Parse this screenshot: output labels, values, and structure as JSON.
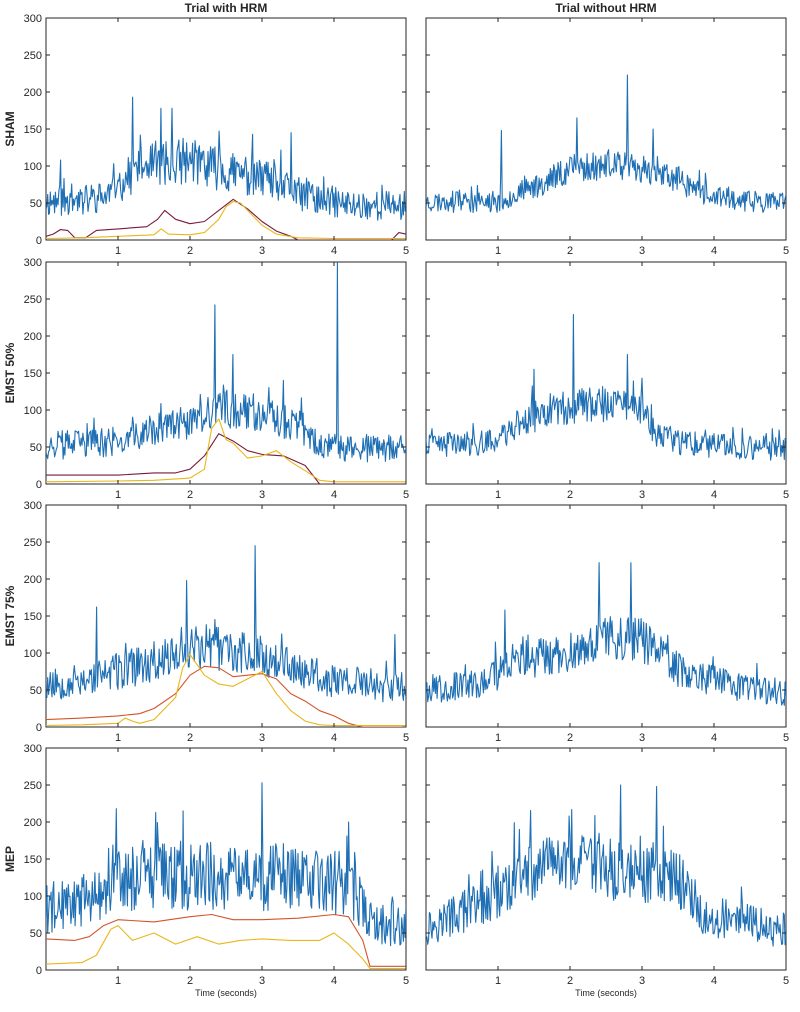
{
  "column_titles": [
    "Trial with HRM",
    "Trial without HRM"
  ],
  "row_labels": [
    "SHAM",
    "EMST 50%",
    "EMST 75%",
    "MEP"
  ],
  "colors": {
    "emg": "#1f6fb4",
    "dark_red": "#7a1a3a",
    "orange_red": "#d4542a",
    "yellow": "#e8b71a"
  },
  "chart_data": [
    {
      "type": "line",
      "row": "SHAM",
      "column": "Trial with HRM",
      "ylabel": "SHAM",
      "xlabel": "",
      "xlim": [
        0,
        5
      ],
      "ylim": [
        0,
        300
      ],
      "xticks": [
        1,
        2,
        3,
        4,
        5
      ],
      "yticks": [
        0,
        50,
        100,
        150,
        200,
        250,
        300
      ],
      "series": [
        {
          "name": "EMG (blue)",
          "color": "#1f6fb4",
          "envelope": {
            "x": [
              0,
              0.8,
              1.3,
              2.0,
              2.5,
              3.0,
              3.5,
              4.2,
              5.0
            ],
            "y": [
              50,
              55,
              95,
              105,
              90,
              80,
              60,
              45,
              45
            ]
          },
          "noise": 22,
          "seed": 11,
          "spikes": [
            [
              0.2,
              108
            ],
            [
              1.2,
              193
            ],
            [
              1.6,
              178
            ],
            [
              1.75,
              178
            ],
            [
              2.4,
              147
            ],
            [
              3.4,
              145
            ]
          ]
        },
        {
          "name": "Envelope (dark red)",
          "color": "#7a1a3a",
          "x": [
            0,
            0.1,
            0.2,
            0.3,
            0.4,
            0.55,
            0.7,
            1.0,
            1.4,
            1.55,
            1.65,
            1.8,
            2.0,
            2.2,
            2.4,
            2.6,
            2.8,
            3.0,
            3.2,
            3.4,
            3.5,
            4.0,
            4.5,
            4.8,
            4.9,
            5.0
          ],
          "y": [
            5,
            8,
            14,
            13,
            3,
            3,
            13,
            15,
            18,
            28,
            40,
            28,
            22,
            25,
            40,
            55,
            42,
            25,
            12,
            5,
            0,
            0,
            0,
            0,
            10,
            8
          ]
        },
        {
          "name": "Envelope (yellow)",
          "color": "#e8b71a",
          "x": [
            0,
            0.5,
            1.0,
            1.5,
            1.6,
            1.7,
            2.0,
            2.2,
            2.4,
            2.5,
            2.6,
            2.7,
            2.8,
            2.9,
            3.0,
            3.2,
            3.5,
            4.0,
            4.5,
            5.0
          ],
          "y": [
            2,
            3,
            5,
            7,
            15,
            8,
            7,
            10,
            28,
            45,
            52,
            50,
            40,
            30,
            20,
            8,
            3,
            2,
            2,
            2
          ]
        }
      ]
    },
    {
      "type": "line",
      "row": "SHAM",
      "column": "Trial without HRM",
      "xlabel": "",
      "xlim": [
        0,
        5
      ],
      "ylim": [
        0,
        300
      ],
      "xticks": [
        1,
        2,
        3,
        4,
        5
      ],
      "yticks": [],
      "series": [
        {
          "name": "EMG (blue)",
          "color": "#1f6fb4",
          "envelope": {
            "x": [
              0,
              1.0,
              1.5,
              2.0,
              2.5,
              3.0,
              3.5,
              4.0,
              5.0
            ],
            "y": [
              50,
              50,
              70,
              95,
              100,
              95,
              80,
              55,
              48
            ]
          },
          "noise": 15,
          "seed": 23,
          "spikes": [
            [
              1.05,
              148
            ],
            [
              2.1,
              165
            ],
            [
              2.8,
              223
            ],
            [
              3.15,
              150
            ]
          ]
        }
      ]
    },
    {
      "type": "line",
      "row": "EMST 50%",
      "column": "Trial with HRM",
      "ylabel": "EMST 50%",
      "xlabel": "",
      "xlim": [
        0,
        5
      ],
      "ylim": [
        0,
        300
      ],
      "xticks": [
        1,
        2,
        3,
        4,
        5
      ],
      "yticks": [
        0,
        50,
        100,
        150,
        200,
        250,
        300
      ],
      "series": [
        {
          "name": "EMG (blue)",
          "color": "#1f6fb4",
          "envelope": {
            "x": [
              0,
              1.0,
              1.5,
              2.0,
              2.5,
              3.0,
              3.5,
              3.8,
              4.0,
              5.0
            ],
            "y": [
              50,
              55,
              70,
              80,
              100,
              95,
              75,
              50,
              48,
              45
            ]
          },
          "noise": 20,
          "seed": 37,
          "spikes": [
            [
              2.35,
              242
            ],
            [
              2.6,
              175
            ],
            [
              3.3,
              140
            ],
            [
              4.05,
              300
            ]
          ]
        },
        {
          "name": "Envelope (dark red)",
          "color": "#7a1a3a",
          "x": [
            0,
            0.5,
            1.0,
            1.5,
            1.8,
            2.0,
            2.2,
            2.4,
            2.6,
            2.8,
            3.0,
            3.3,
            3.6,
            3.8,
            4.0,
            5.0
          ],
          "y": [
            12,
            12,
            12,
            15,
            15,
            20,
            38,
            68,
            58,
            45,
            40,
            38,
            25,
            0,
            0,
            0
          ]
        },
        {
          "name": "Envelope (yellow)",
          "color": "#e8b71a",
          "x": [
            0,
            1.0,
            1.5,
            2.0,
            2.2,
            2.3,
            2.4,
            2.5,
            2.6,
            2.8,
            3.0,
            3.2,
            3.4,
            3.6,
            3.8,
            4.0,
            5.0
          ],
          "y": [
            3,
            4,
            5,
            8,
            20,
            75,
            88,
            60,
            55,
            35,
            38,
            45,
            30,
            18,
            5,
            3,
            3
          ]
        }
      ]
    },
    {
      "type": "line",
      "row": "EMST 50%",
      "column": "Trial without HRM",
      "xlabel": "",
      "xlim": [
        0,
        5
      ],
      "ylim": [
        0,
        300
      ],
      "xticks": [
        1,
        2,
        3,
        4,
        5
      ],
      "yticks": [],
      "series": [
        {
          "name": "EMG (blue)",
          "color": "#1f6fb4",
          "envelope": {
            "x": [
              0,
              1.0,
              1.2,
              1.8,
              2.5,
              3.0,
              3.2,
              3.5,
              4.0,
              5.0
            ],
            "y": [
              50,
              55,
              75,
              100,
              105,
              100,
              65,
              55,
              50,
              45
            ]
          },
          "noise": 17,
          "seed": 41,
          "spikes": [
            [
              2.05,
              229
            ],
            [
              2.8,
              175
            ],
            [
              1.5,
              155
            ]
          ]
        }
      ]
    },
    {
      "type": "line",
      "row": "EMST 75%",
      "column": "Trial with HRM",
      "ylabel": "EMST 75%",
      "xlabel": "",
      "xlim": [
        0,
        5
      ],
      "ylim": [
        0,
        300
      ],
      "xticks": [
        1,
        2,
        3,
        4,
        5
      ],
      "yticks": [
        0,
        50,
        100,
        150,
        200,
        250,
        300
      ],
      "series": [
        {
          "name": "EMG (blue)",
          "color": "#1f6fb4",
          "envelope": {
            "x": [
              0,
              0.7,
              1.5,
              2.0,
              2.5,
              3.0,
              3.5,
              4.0,
              5.0
            ],
            "y": [
              55,
              65,
              85,
              110,
              100,
              95,
              75,
              60,
              50
            ]
          },
          "noise": 22,
          "seed": 53,
          "spikes": [
            [
              0.7,
              162
            ],
            [
              1.95,
              198
            ],
            [
              2.9,
              245
            ],
            [
              4.85,
              125
            ]
          ]
        },
        {
          "name": "Envelope (orange-red)",
          "color": "#d4542a",
          "x": [
            0,
            0.5,
            1.0,
            1.3,
            1.5,
            1.8,
            2.0,
            2.2,
            2.4,
            2.6,
            2.8,
            3.0,
            3.2,
            3.4,
            3.6,
            3.8,
            4.0,
            4.2,
            4.4,
            5.0
          ],
          "y": [
            10,
            12,
            15,
            18,
            25,
            45,
            70,
            82,
            80,
            68,
            70,
            72,
            65,
            45,
            35,
            22,
            15,
            5,
            0,
            0
          ]
        },
        {
          "name": "Envelope (yellow)",
          "color": "#e8b71a",
          "x": [
            0,
            0.5,
            1.0,
            1.1,
            1.2,
            1.3,
            1.5,
            1.8,
            1.9,
            2.0,
            2.2,
            2.4,
            2.6,
            2.8,
            3.0,
            3.2,
            3.4,
            3.6,
            3.8,
            4.0,
            5.0
          ],
          "y": [
            2,
            3,
            5,
            12,
            8,
            5,
            10,
            40,
            80,
            98,
            70,
            58,
            55,
            65,
            75,
            45,
            22,
            8,
            3,
            2,
            2
          ]
        }
      ]
    },
    {
      "type": "line",
      "row": "EMST 75%",
      "column": "Trial without HRM",
      "xlabel": "",
      "xlim": [
        0,
        5
      ],
      "ylim": [
        0,
        300
      ],
      "xticks": [
        1,
        2,
        3,
        4,
        5
      ],
      "yticks": [],
      "series": [
        {
          "name": "EMG (blue)",
          "color": "#1f6fb4",
          "envelope": {
            "x": [
              0,
              0.8,
              1.2,
              2.0,
              2.5,
              3.0,
              3.5,
              4.0,
              4.5,
              5.0
            ],
            "y": [
              50,
              55,
              85,
              100,
              120,
              115,
              75,
              60,
              48,
              45
            ]
          },
          "noise": 20,
          "seed": 67,
          "spikes": [
            [
              2.4,
              222
            ],
            [
              2.85,
              222
            ],
            [
              1.1,
              158
            ]
          ]
        }
      ]
    },
    {
      "type": "line",
      "row": "MEP",
      "column": "Trial with HRM",
      "ylabel": "MEP",
      "xlabel": "Time (seconds)",
      "xlim": [
        0,
        5
      ],
      "ylim": [
        0,
        300
      ],
      "xticks": [
        1,
        2,
        3,
        4,
        5
      ],
      "yticks": [
        0,
        50,
        100,
        150,
        200,
        250,
        300
      ],
      "series": [
        {
          "name": "EMG (blue)",
          "color": "#1f6fb4",
          "envelope": {
            "x": [
              0,
              0.5,
              0.9,
              1.5,
              2.5,
              3.5,
              4.2,
              4.5,
              5.0
            ],
            "y": [
              80,
              85,
              120,
              125,
              120,
              120,
              110,
              65,
              55
            ]
          },
          "noise": 30,
          "seed": 79,
          "spikes": [
            [
              0.98,
              218
            ],
            [
              1.9,
              215
            ],
            [
              3.0,
              253
            ],
            [
              4.2,
              200
            ]
          ]
        },
        {
          "name": "Envelope (orange-red)",
          "color": "#d4542a",
          "x": [
            0,
            0.4,
            0.6,
            0.8,
            1.0,
            1.5,
            2.0,
            2.3,
            2.6,
            3.0,
            3.5,
            4.0,
            4.2,
            4.4,
            4.5,
            5.0
          ],
          "y": [
            42,
            40,
            45,
            60,
            68,
            65,
            72,
            75,
            68,
            68,
            70,
            75,
            72,
            40,
            5,
            5
          ]
        },
        {
          "name": "Envelope (yellow)",
          "color": "#e8b71a",
          "x": [
            0,
            0.5,
            0.7,
            0.9,
            1.0,
            1.2,
            1.5,
            1.8,
            2.1,
            2.4,
            2.7,
            3.0,
            3.4,
            3.8,
            4.0,
            4.2,
            4.4,
            4.5,
            5.0
          ],
          "y": [
            8,
            10,
            20,
            55,
            60,
            40,
            50,
            35,
            45,
            35,
            40,
            42,
            40,
            40,
            50,
            35,
            15,
            2,
            2
          ]
        }
      ]
    },
    {
      "type": "line",
      "row": "MEP",
      "column": "Trial without HRM",
      "xlabel": "Time (seconds)",
      "xlim": [
        0,
        5
      ],
      "ylim": [
        0,
        300
      ],
      "xticks": [
        1,
        2,
        3,
        4,
        5
      ],
      "yticks": [],
      "series": [
        {
          "name": "EMG (blue)",
          "color": "#1f6fb4",
          "envelope": {
            "x": [
              0,
              0.5,
              1.0,
              1.5,
              2.0,
              3.0,
              3.5,
              3.9,
              4.2,
              5.0
            ],
            "y": [
              55,
              75,
              100,
              130,
              140,
              125,
              120,
              65,
              65,
              50
            ]
          },
          "noise": 25,
          "seed": 97,
          "spikes": [
            [
              2.7,
              250
            ],
            [
              3.2,
              248
            ],
            [
              1.3,
              190
            ]
          ]
        }
      ]
    }
  ]
}
